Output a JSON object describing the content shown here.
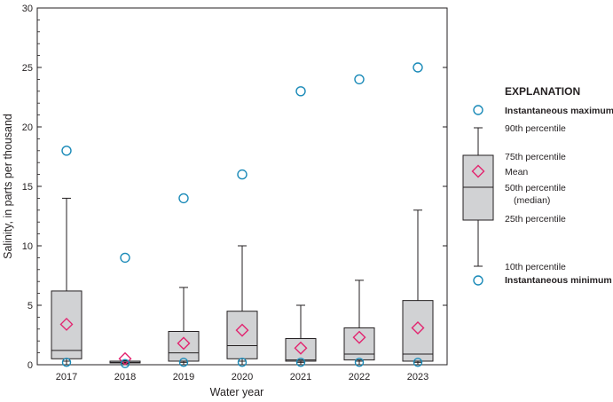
{
  "chart_data": {
    "type": "box",
    "xlabel": "Water year",
    "ylabel": "Salinity, in parts per thousand",
    "ylim": [
      0,
      30
    ],
    "yticks": [
      0,
      5,
      10,
      15,
      20,
      25,
      30
    ],
    "categories": [
      "2017",
      "2018",
      "2019",
      "2020",
      "2021",
      "2022",
      "2023"
    ],
    "boxes": [
      {
        "year": "2017",
        "p10": 0.3,
        "p25": 0.5,
        "median": 1.2,
        "p75": 6.2,
        "p90": 14.0,
        "mean": 3.4,
        "min": 0.2,
        "max": 18.0
      },
      {
        "year": "2018",
        "p10": 0.1,
        "p25": 0.15,
        "median": 0.2,
        "p75": 0.3,
        "p90": 0.35,
        "mean": 0.5,
        "min": 0.1,
        "max": 9.0
      },
      {
        "year": "2019",
        "p10": 0.2,
        "p25": 0.3,
        "median": 1.0,
        "p75": 2.8,
        "p90": 6.5,
        "mean": 1.8,
        "min": 0.2,
        "max": 14.0
      },
      {
        "year": "2020",
        "p10": 0.3,
        "p25": 0.5,
        "median": 1.6,
        "p75": 4.5,
        "p90": 10.0,
        "mean": 2.9,
        "min": 0.2,
        "max": 16.0
      },
      {
        "year": "2021",
        "p10": 0.2,
        "p25": 0.3,
        "median": 0.4,
        "p75": 2.2,
        "p90": 5.0,
        "mean": 1.4,
        "min": 0.2,
        "max": 23.0
      },
      {
        "year": "2022",
        "p10": 0.3,
        "p25": 0.4,
        "median": 0.9,
        "p75": 3.1,
        "p90": 7.1,
        "mean": 2.3,
        "min": 0.2,
        "max": 24.0
      },
      {
        "year": "2023",
        "p10": 0.2,
        "p25": 0.3,
        "median": 0.9,
        "p75": 5.4,
        "p90": 13.0,
        "mean": 3.1,
        "min": 0.2,
        "max": 25.0
      }
    ],
    "legend": {
      "title": "EXPLANATION",
      "instantaneous_maximum": "Instantaneous maximum",
      "p90": "90th percentile",
      "p75": "75th percentile",
      "mean": "Mean",
      "p50_line1": "50th percentile",
      "p50_line2": "(median)",
      "p25": "25th percentile",
      "p10": "10th percentile",
      "instantaneous_minimum": "Instantaneous minimum",
      "placement": "right"
    },
    "colors": {
      "box_fill": "#d1d2d4",
      "outline": "#231f20",
      "mean_marker": "#e2246f",
      "extreme_marker": "#1a8ab8"
    }
  }
}
